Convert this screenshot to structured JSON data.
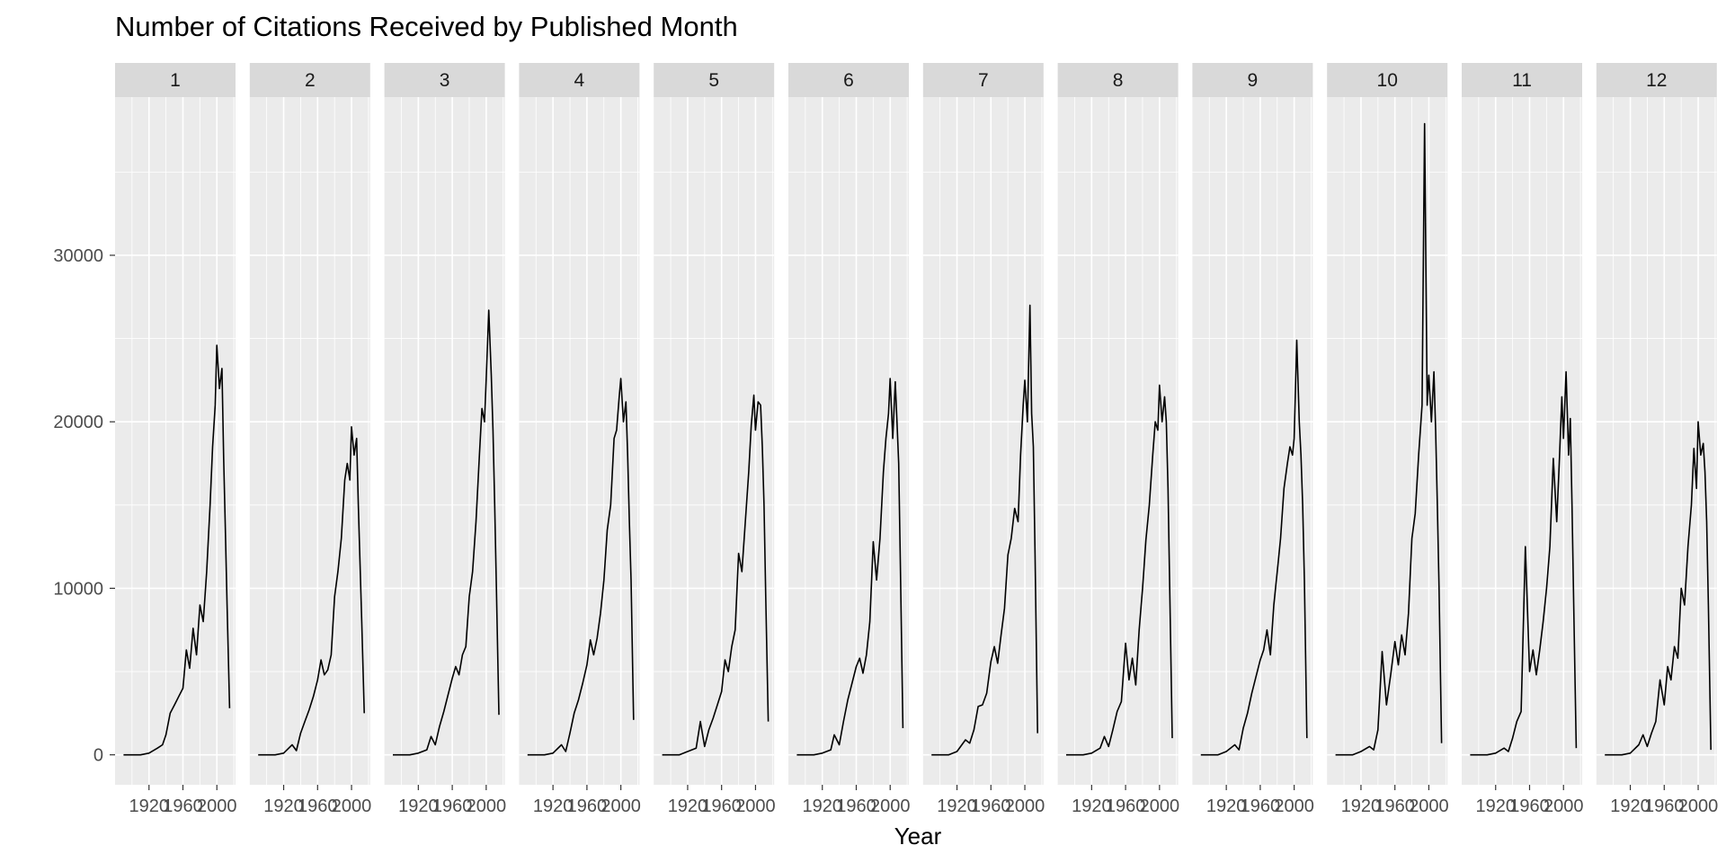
{
  "chart_data": {
    "type": "line",
    "title": "Number of Citations Received by Published Month",
    "xlabel": "Year",
    "ylabel": "",
    "facet_by": "month",
    "facets": [
      "1",
      "2",
      "3",
      "4",
      "5",
      "6",
      "7",
      "8",
      "9",
      "10",
      "11",
      "12"
    ],
    "xlim": [
      1880,
      2022
    ],
    "ylim": [
      -1800,
      39500
    ],
    "x_ticks": [
      1920,
      1960,
      2000
    ],
    "y_ticks": [
      0,
      10000,
      20000,
      30000
    ],
    "grid": true,
    "line_color": "#000000",
    "panel_background": "#ebebeb",
    "strip_background": "#d9d9d9",
    "series": [
      {
        "facet": "1",
        "x": [
          1890,
          1910,
          1920,
          1930,
          1936,
          1940,
          1945,
          1950,
          1955,
          1960,
          1964,
          1968,
          1972,
          1976,
          1980,
          1984,
          1988,
          1992,
          1995,
          1998,
          2000,
          2003,
          2006,
          2008,
          2010,
          2012,
          2015
        ],
        "y": [
          0,
          0,
          100,
          400,
          600,
          1200,
          2500,
          3000,
          3500,
          4000,
          6300,
          5200,
          7600,
          6000,
          9000,
          8000,
          11000,
          15000,
          18500,
          21000,
          24600,
          22000,
          23200,
          17800,
          13500,
          9000,
          2800
        ]
      },
      {
        "facet": "2",
        "x": [
          1890,
          1910,
          1920,
          1930,
          1935,
          1940,
          1945,
          1950,
          1955,
          1960,
          1964,
          1968,
          1972,
          1976,
          1980,
          1984,
          1988,
          1992,
          1995,
          1998,
          2000,
          2003,
          2006,
          2008,
          2010,
          2012,
          2015
        ],
        "y": [
          0,
          0,
          100,
          600,
          250,
          1300,
          2000,
          2700,
          3500,
          4500,
          5700,
          4800,
          5100,
          6000,
          9500,
          11000,
          13000,
          16500,
          17500,
          16500,
          19700,
          18000,
          19000,
          15000,
          11500,
          8000,
          2500
        ]
      },
      {
        "facet": "3",
        "x": [
          1890,
          1910,
          1920,
          1930,
          1935,
          1940,
          1945,
          1950,
          1955,
          1960,
          1964,
          1968,
          1972,
          1976,
          1980,
          1984,
          1988,
          1992,
          1995,
          1998,
          2000,
          2003,
          2006,
          2008,
          2010,
          2012,
          2015
        ],
        "y": [
          0,
          0,
          100,
          300,
          1100,
          600,
          1700,
          2600,
          3600,
          4600,
          5300,
          4800,
          6000,
          6500,
          9500,
          11000,
          14000,
          18000,
          20800,
          20000,
          22500,
          26700,
          22800,
          19500,
          15000,
          10000,
          2400
        ]
      },
      {
        "facet": "4",
        "x": [
          1890,
          1910,
          1920,
          1930,
          1935,
          1940,
          1945,
          1950,
          1955,
          1960,
          1964,
          1968,
          1972,
          1976,
          1980,
          1984,
          1988,
          1992,
          1995,
          1998,
          2000,
          2003,
          2006,
          2008,
          2010,
          2012,
          2015
        ],
        "y": [
          0,
          0,
          100,
          600,
          200,
          1300,
          2500,
          3300,
          4300,
          5400,
          6900,
          6000,
          7000,
          8500,
          10500,
          13500,
          15000,
          19000,
          19500,
          21500,
          22600,
          20000,
          21200,
          18000,
          14000,
          10500,
          2100
        ]
      },
      {
        "facet": "5",
        "x": [
          1890,
          1910,
          1920,
          1930,
          1935,
          1940,
          1945,
          1950,
          1955,
          1960,
          1964,
          1968,
          1972,
          1976,
          1980,
          1984,
          1988,
          1992,
          1995,
          1998,
          2000,
          2003,
          2006,
          2008,
          2010,
          2012,
          2015
        ],
        "y": [
          0,
          0,
          200,
          400,
          2000,
          500,
          1500,
          2200,
          3000,
          3800,
          5700,
          5000,
          6500,
          7500,
          12100,
          11000,
          14000,
          17000,
          19800,
          21600,
          19500,
          21200,
          21000,
          18500,
          15000,
          9500,
          2000
        ]
      },
      {
        "facet": "6",
        "x": [
          1890,
          1910,
          1920,
          1930,
          1934,
          1940,
          1945,
          1950,
          1955,
          1960,
          1964,
          1968,
          1972,
          1976,
          1980,
          1984,
          1988,
          1992,
          1995,
          1998,
          2000,
          2003,
          2006,
          2008,
          2010,
          2012,
          2015
        ],
        "y": [
          0,
          0,
          100,
          300,
          1200,
          600,
          2000,
          3300,
          4300,
          5300,
          5800,
          4900,
          6000,
          8000,
          12800,
          10500,
          13000,
          17000,
          19000,
          20500,
          22600,
          19000,
          22400,
          20000,
          17500,
          11300,
          1600
        ]
      },
      {
        "facet": "7",
        "x": [
          1890,
          1910,
          1920,
          1930,
          1935,
          1940,
          1945,
          1950,
          1955,
          1960,
          1964,
          1968,
          1972,
          1976,
          1980,
          1984,
          1988,
          1992,
          1995,
          1998,
          2000,
          2003,
          2006,
          2008,
          2010,
          2012,
          2015
        ],
        "y": [
          0,
          0,
          200,
          900,
          700,
          1500,
          2900,
          3000,
          3700,
          5600,
          6500,
          5500,
          7200,
          8800,
          12000,
          13000,
          14800,
          14000,
          18000,
          21000,
          22500,
          20000,
          27000,
          20500,
          18500,
          12000,
          1300
        ]
      },
      {
        "facet": "8",
        "x": [
          1890,
          1910,
          1920,
          1930,
          1935,
          1940,
          1945,
          1950,
          1955,
          1960,
          1964,
          1968,
          1972,
          1976,
          1980,
          1984,
          1988,
          1992,
          1995,
          1998,
          2000,
          2003,
          2006,
          2008,
          2010,
          2012,
          2015
        ],
        "y": [
          0,
          0,
          100,
          400,
          1100,
          500,
          1500,
          2600,
          3200,
          6700,
          4500,
          5800,
          4200,
          7500,
          10000,
          12900,
          15000,
          18000,
          20000,
          19500,
          22200,
          20000,
          21500,
          20000,
          16000,
          10000,
          1000
        ]
      },
      {
        "facet": "9",
        "x": [
          1890,
          1910,
          1920,
          1930,
          1935,
          1940,
          1945,
          1950,
          1955,
          1960,
          1964,
          1968,
          1972,
          1976,
          1980,
          1984,
          1988,
          1992,
          1995,
          1998,
          2000,
          2003,
          2006,
          2008,
          2010,
          2012,
          2015
        ],
        "y": [
          0,
          0,
          200,
          600,
          300,
          1600,
          2500,
          3700,
          4700,
          5700,
          6300,
          7500,
          6000,
          9000,
          11000,
          13000,
          16000,
          17500,
          18500,
          18000,
          19000,
          24900,
          20000,
          18000,
          15000,
          10500,
          1000
        ]
      },
      {
        "facet": "10",
        "x": [
          1890,
          1910,
          1920,
          1930,
          1935,
          1940,
          1945,
          1950,
          1955,
          1960,
          1964,
          1968,
          1972,
          1976,
          1980,
          1984,
          1988,
          1992,
          1995,
          1998,
          2000,
          2003,
          2006,
          2008,
          2010,
          2012,
          2015
        ],
        "y": [
          0,
          0,
          200,
          500,
          300,
          1500,
          6200,
          3000,
          4800,
          6800,
          5400,
          7200,
          6000,
          8500,
          13000,
          14500,
          18000,
          21000,
          37900,
          21000,
          22800,
          20000,
          23000,
          19500,
          15000,
          10000,
          700
        ]
      },
      {
        "facet": "11",
        "x": [
          1890,
          1910,
          1920,
          1930,
          1935,
          1940,
          1945,
          1950,
          1955,
          1960,
          1964,
          1968,
          1972,
          1976,
          1980,
          1984,
          1988,
          1992,
          1995,
          1998,
          2000,
          2003,
          2006,
          2008,
          2010,
          2012,
          2015
        ],
        "y": [
          0,
          0,
          100,
          400,
          200,
          1000,
          2000,
          2600,
          12500,
          5000,
          6300,
          4800,
          6300,
          8000,
          10000,
          12500,
          17800,
          14000,
          17500,
          21500,
          19000,
          23000,
          18000,
          20200,
          15000,
          9000,
          400
        ]
      },
      {
        "facet": "12",
        "x": [
          1890,
          1910,
          1920,
          1930,
          1935,
          1940,
          1945,
          1950,
          1955,
          1960,
          1964,
          1968,
          1972,
          1976,
          1980,
          1984,
          1988,
          1992,
          1995,
          1998,
          2000,
          2003,
          2006,
          2008,
          2010,
          2012,
          2015
        ],
        "y": [
          0,
          0,
          100,
          600,
          1200,
          500,
          1300,
          2000,
          4500,
          3000,
          5300,
          4500,
          6500,
          5800,
          10000,
          9000,
          12500,
          15000,
          18400,
          16000,
          20000,
          18000,
          18700,
          17000,
          14000,
          9000,
          300
        ]
      }
    ]
  }
}
